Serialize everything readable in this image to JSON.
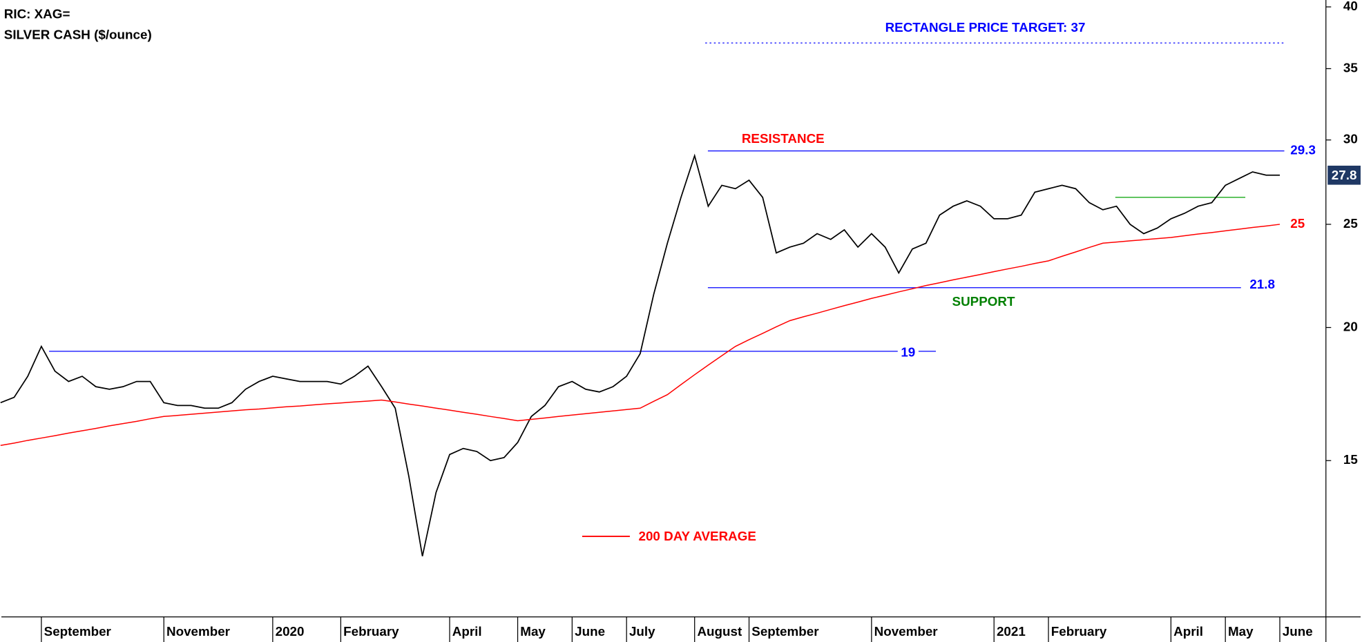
{
  "chart_data": {
    "type": "line",
    "title": "RIC: XAG=",
    "subtitle": "SILVER CASH ($/ounce)",
    "log_scale": true,
    "ylim": [
      10.7,
      40.6
    ],
    "yticks": [
      15,
      20,
      25,
      30,
      35,
      40
    ],
    "categories": [
      null,
      null,
      null,
      "September",
      null,
      null,
      null,
      null,
      null,
      null,
      null,
      null,
      "November",
      null,
      null,
      null,
      null,
      null,
      null,
      null,
      "2020",
      null,
      null,
      null,
      null,
      "February",
      null,
      null,
      null,
      null,
      null,
      null,
      null,
      "April",
      null,
      null,
      null,
      null,
      "May",
      null,
      null,
      null,
      "June",
      null,
      null,
      null,
      "July",
      null,
      null,
      null,
      null,
      "August",
      null,
      null,
      null,
      "September",
      null,
      null,
      null,
      null,
      null,
      null,
      null,
      null,
      "November",
      null,
      null,
      null,
      null,
      null,
      null,
      null,
      null,
      "2021",
      null,
      null,
      null,
      "February",
      null,
      null,
      null,
      null,
      null,
      null,
      null,
      null,
      "April",
      null,
      null,
      null,
      "May",
      null,
      null,
      null,
      "June"
    ],
    "series": [
      {
        "color": "#000000",
        "values": [
          17.0,
          17.2,
          18.0,
          19.2,
          18.2,
          17.8,
          18.0,
          17.6,
          17.5,
          17.6,
          17.8,
          17.8,
          17.0,
          16.9,
          16.9,
          16.8,
          16.8,
          17.0,
          17.5,
          17.8,
          18.0,
          17.9,
          17.8,
          17.8,
          17.8,
          17.7,
          18.0,
          18.4,
          17.6,
          16.8,
          14.5,
          12.2,
          14.0,
          15.2,
          15.4,
          15.3,
          15.0,
          15.1,
          15.6,
          16.5,
          16.9,
          17.6,
          17.8,
          17.5,
          17.4,
          17.6,
          18.0,
          18.9,
          21.5,
          24.0,
          26.5,
          29.0,
          26.0,
          27.2,
          27.0,
          27.5,
          26.5,
          23.5,
          23.8,
          24.0,
          24.5,
          24.2,
          24.7,
          23.8,
          24.5,
          23.8,
          22.5,
          23.7,
          24.0,
          25.5,
          26.0,
          26.3,
          26.0,
          25.3,
          25.3,
          25.5,
          26.8,
          27.0,
          27.2,
          27.0,
          26.2,
          25.8,
          26.0,
          25.0,
          24.5,
          24.8,
          25.3,
          25.6,
          26.0,
          26.2,
          27.2,
          27.6,
          28.0,
          27.8,
          27.8
        ]
      },
      {
        "name": "200 DAY AVERAGE",
        "color": "#ff0000",
        "values": [
          15.5,
          15.58,
          15.67,
          15.75,
          15.83,
          15.92,
          16.0,
          16.08,
          16.17,
          16.25,
          16.33,
          16.42,
          16.5,
          16.54,
          16.58,
          16.62,
          16.66,
          16.7,
          16.74,
          16.77,
          16.81,
          16.85,
          16.88,
          16.92,
          16.96,
          16.99,
          17.03,
          17.06,
          17.1,
          17.03,
          16.95,
          16.88,
          16.8,
          16.73,
          16.65,
          16.58,
          16.5,
          16.43,
          16.35,
          16.4,
          16.45,
          16.5,
          16.55,
          16.6,
          16.65,
          16.7,
          16.75,
          16.8,
          17.05,
          17.3,
          17.68,
          18.06,
          18.44,
          18.82,
          19.2,
          19.48,
          19.75,
          20.03,
          20.3,
          20.47,
          20.63,
          20.8,
          20.97,
          21.13,
          21.3,
          21.45,
          21.6,
          21.75,
          21.9,
          22.03,
          22.17,
          22.3,
          22.43,
          22.57,
          22.7,
          22.83,
          22.97,
          23.1,
          23.33,
          23.55,
          23.78,
          24.0,
          24.06,
          24.12,
          24.18,
          24.24,
          24.3,
          24.39,
          24.48,
          24.56,
          24.65,
          24.74,
          24.83,
          24.91,
          25.0
        ]
      }
    ],
    "levels": [
      {
        "value": 37,
        "label": "RECTANGLE PRICE TARGET: 37",
        "color": "#0000ff",
        "style": "dotted"
      },
      {
        "value": 29.3,
        "label": "RESISTANCE",
        "color": "#0000ff",
        "label_color": "#ff0000"
      },
      {
        "value": 21.8,
        "label": "SUPPORT",
        "color": "#0000ff",
        "label_color": "#008000"
      },
      {
        "value": 19,
        "color": "#0000ff"
      },
      {
        "value": 26.5,
        "color": "#00a000"
      }
    ],
    "last_value_box_color": "#1f3864"
  }
}
